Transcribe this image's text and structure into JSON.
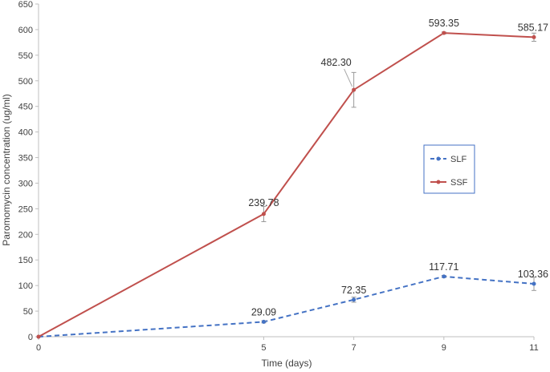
{
  "chart_data": {
    "type": "line",
    "title": "",
    "xlabel": "Time (days)",
    "ylabel": "Paromomycin concentration (ug/ml)",
    "x": [
      0,
      5,
      7,
      9,
      11
    ],
    "xlim": [
      0,
      11
    ],
    "ylim": [
      0,
      650
    ],
    "yticks": [
      0,
      50,
      100,
      150,
      200,
      250,
      300,
      350,
      400,
      450,
      500,
      550,
      600,
      650
    ],
    "grid": false,
    "legend_position": "right",
    "series": [
      {
        "name": "SLF",
        "color": "#4472C4",
        "line_style": "dashed",
        "values": [
          0,
          29.09,
          72.35,
          117.71,
          103.36
        ],
        "error": [
          0,
          2,
          5,
          2,
          13
        ],
        "labels": [
          "",
          "29.09",
          "72.35",
          "117.71",
          "103.36"
        ]
      },
      {
        "name": "SSF",
        "color": "#C0504D",
        "line_style": "solid",
        "values": [
          0,
          239.78,
          482.3,
          593.35,
          585.17
        ],
        "error": [
          0,
          15,
          34,
          2,
          8
        ],
        "labels": [
          "",
          "239.78",
          "482.30",
          "593.35",
          "585.17"
        ]
      }
    ]
  }
}
